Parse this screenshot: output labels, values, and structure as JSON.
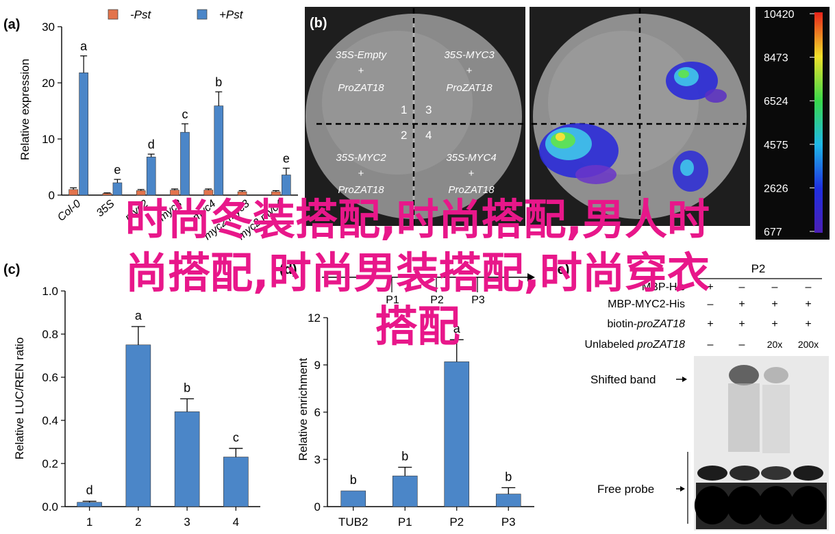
{
  "figure": {
    "overlay_text_lines": [
      "时尚冬装搭配,时尚搭配,男人时",
      "尚搭配,时尚男装搭配,时尚穿衣",
      "搭配"
    ],
    "colors": {
      "minus": "#e3744c",
      "plus": "#4b86c8",
      "overlay": "#e8178a",
      "bar": "#4b86c8"
    }
  },
  "panel_a": {
    "label": "(a)",
    "legend": [
      "-Pst",
      "+Pst"
    ],
    "ylabel": "Relative expression",
    "xticklabels": [
      "Col-0",
      "35S",
      "myc2",
      "myc3",
      "myc4",
      "myc2 myc3",
      "myc2 myc4"
    ],
    "chart_data": {
      "type": "bar",
      "categories": [
        "Col-0",
        "35S",
        "myc2",
        "myc3",
        "myc4",
        "myc2 myc3",
        "myc2 myc4"
      ],
      "series": [
        {
          "name": "-Pst",
          "values": [
            1.0,
            0.3,
            0.8,
            0.9,
            0.9,
            0.6,
            0.6
          ],
          "errors": [
            0.3,
            0.1,
            0.2,
            0.2,
            0.2,
            0.2,
            0.2
          ]
        },
        {
          "name": "+Pst",
          "values": [
            21.8,
            2.2,
            6.8,
            11.2,
            15.9,
            0.0,
            3.6
          ],
          "errors": [
            3.0,
            0.6,
            0.5,
            1.5,
            2.5,
            0,
            1.2
          ]
        }
      ],
      "letters": [
        "a",
        "e",
        "d",
        "c",
        "b",
        "",
        "e"
      ],
      "ylim": [
        0,
        30
      ],
      "yticks": [
        0,
        10,
        20,
        30
      ]
    }
  },
  "panel_b": {
    "label": "(b)",
    "quadrant_labels": [
      {
        "line1": "35S-Empty",
        "line2": "+",
        "line3": "ProZAT18"
      },
      {
        "line1": "35S-MYC3",
        "line2": "+",
        "line3": "ProZAT18"
      },
      {
        "line1": "35S-MYC2",
        "line2": "+",
        "line3": "ProZAT18"
      },
      {
        "line1": "35S-MYC4",
        "line2": "+",
        "line3": "ProZAT18"
      }
    ],
    "quadrant_numbers": [
      "1",
      "3",
      "2",
      "4"
    ],
    "colorbar_ticks": [
      "10420",
      "8473",
      "6524",
      "4575",
      "2626",
      "677"
    ]
  },
  "panel_c": {
    "label": "(c)",
    "ylabel": "Relative LUC/REN ratio",
    "chart_data": {
      "type": "bar",
      "categories": [
        "1",
        "2",
        "3",
        "4"
      ],
      "values": [
        0.02,
        0.75,
        0.44,
        0.23
      ],
      "errors": [
        0.005,
        0.085,
        0.06,
        0.04
      ],
      "letters": [
        "d",
        "a",
        "b",
        "c"
      ],
      "ylim": [
        0,
        1.0
      ],
      "yticks": [
        0.0,
        0.2,
        0.4,
        0.6,
        0.8,
        1.0
      ],
      "ytick_labels": [
        "0.0",
        "0.2",
        "0.4",
        "0.6",
        "0.8",
        "1.0"
      ]
    }
  },
  "panel_d": {
    "label": "(d)",
    "ylabel": "Relative enrichment",
    "schematic_labels": [
      "P1",
      "P2",
      "P3"
    ],
    "chart_data": {
      "type": "bar",
      "categories": [
        "TUB2",
        "P1",
        "P2",
        "P3"
      ],
      "values": [
        1.0,
        1.95,
        9.2,
        0.8
      ],
      "errors": [
        0,
        0.55,
        1.4,
        0.4
      ],
      "letters": [
        "b",
        "b",
        "a",
        "b"
      ],
      "ylim": [
        0,
        12
      ],
      "yticks": [
        0,
        3,
        6,
        9,
        12
      ]
    }
  },
  "panel_e": {
    "label": "(e)",
    "probe_header": "P2",
    "rows": [
      {
        "label": "MBP-His",
        "signs": [
          "+",
          "–",
          "–",
          "–"
        ]
      },
      {
        "label": "MBP-MYC2-His",
        "signs": [
          "–",
          "+",
          "+",
          "+"
        ]
      },
      {
        "label": "biotin-proZAT18",
        "signs": [
          "+",
          "+",
          "+",
          "+"
        ]
      },
      {
        "label": "Unlabeled proZAT18",
        "signs": [
          "–",
          "–",
          "20x",
          "200x"
        ]
      }
    ],
    "shifted_band": "Shifted band",
    "free_probe": "Free probe"
  }
}
